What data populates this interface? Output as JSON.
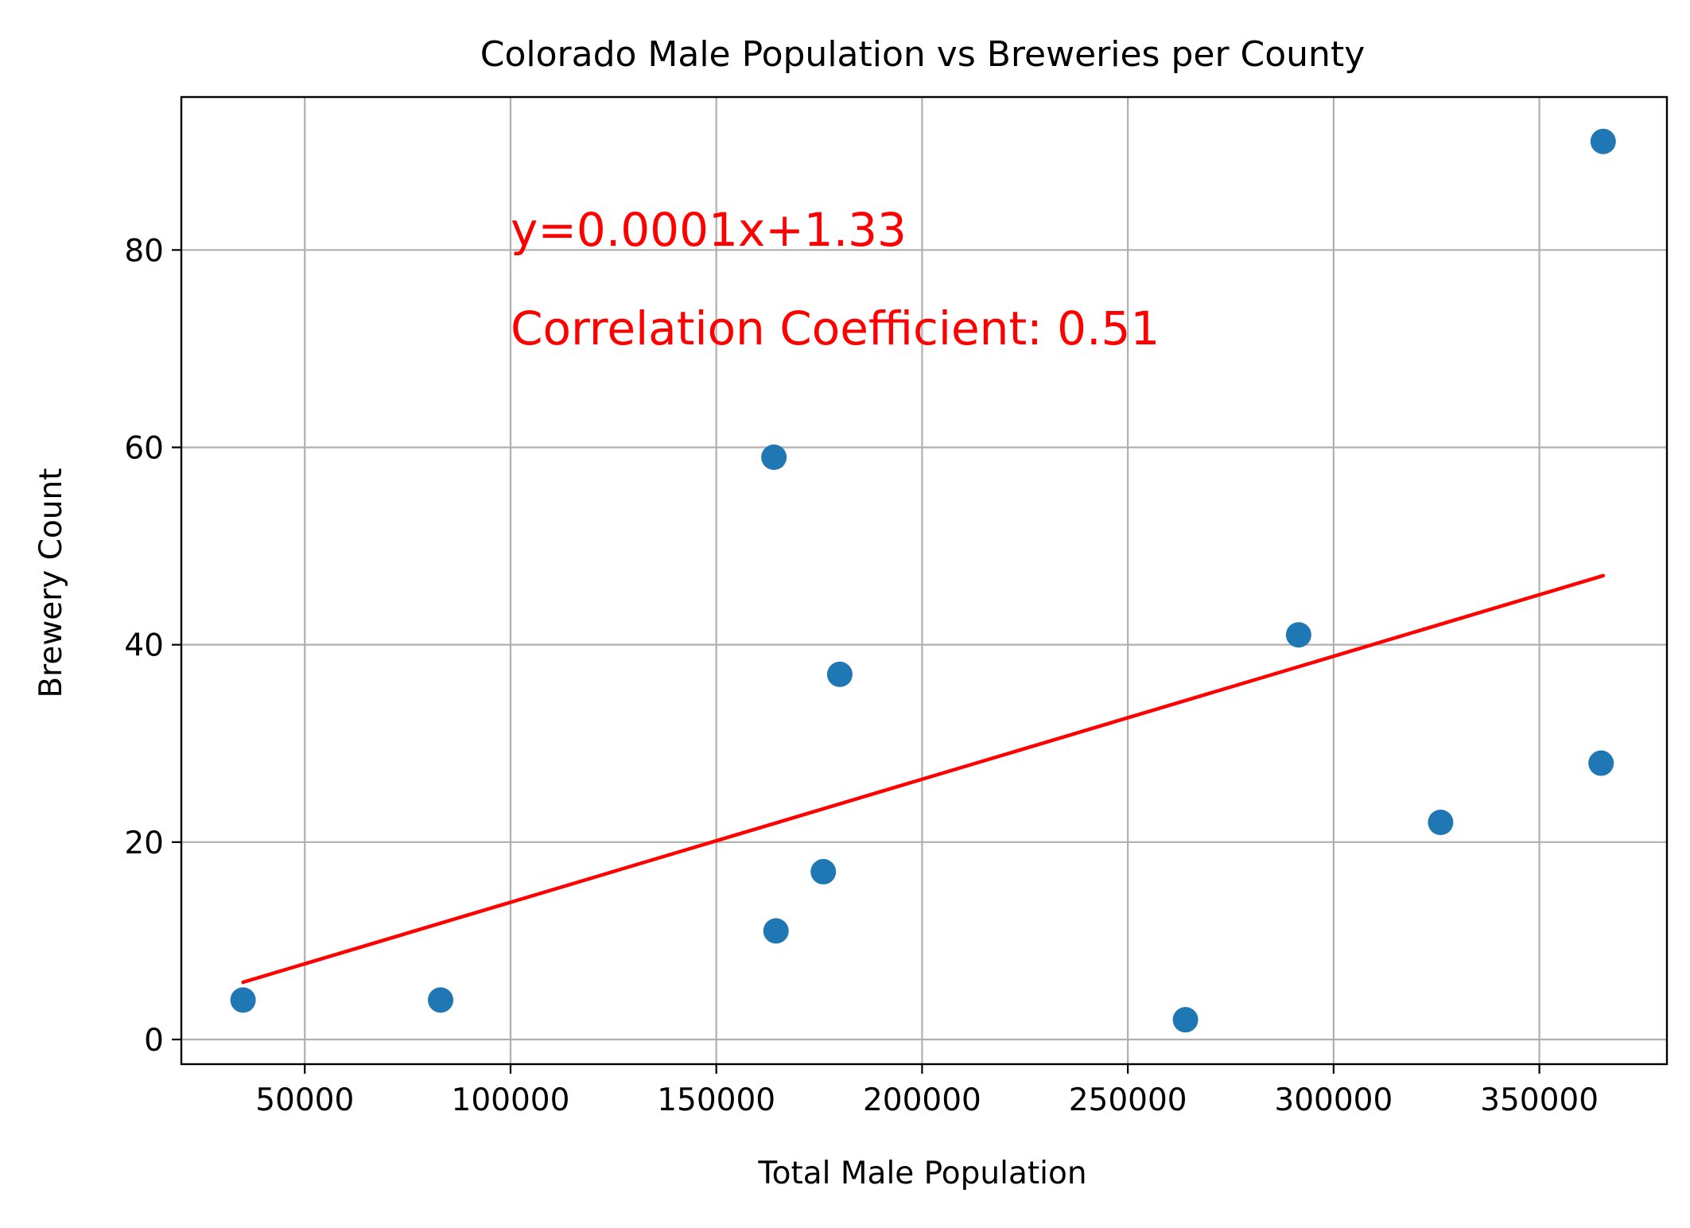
{
  "chart_data": {
    "type": "scatter",
    "title": "Colorado Male Population vs Breweries per County",
    "xlabel": "Total Male Population",
    "ylabel": "Brewery Count",
    "xlim": [
      20000,
      381000
    ],
    "ylim": [
      -2.5,
      95.5
    ],
    "x_ticks": [
      50000,
      100000,
      150000,
      200000,
      250000,
      300000,
      350000
    ],
    "y_ticks": [
      0,
      20,
      40,
      60,
      80
    ],
    "grid": true,
    "series": [
      {
        "points": [
          {
            "x": 35000,
            "y": 4
          },
          {
            "x": 83000,
            "y": 4
          },
          {
            "x": 164000,
            "y": 59
          },
          {
            "x": 164500,
            "y": 11
          },
          {
            "x": 176000,
            "y": 17
          },
          {
            "x": 180000,
            "y": 37
          },
          {
            "x": 264000,
            "y": 2
          },
          {
            "x": 291500,
            "y": 41
          },
          {
            "x": 326000,
            "y": 22
          },
          {
            "x": 365000,
            "y": 28
          },
          {
            "x": 365500,
            "y": 91
          }
        ],
        "color": "#1f77b4"
      }
    ],
    "regression": {
      "x_start": 35000,
      "x_end": 365500,
      "y_start": 5.8,
      "y_end": 47.0,
      "color": "#ff0000"
    },
    "annotations": [
      {
        "text": "y=0.0001x+1.33",
        "color": "#ff0000"
      },
      {
        "text": "Correlation Coefficient: 0.51",
        "color": "#ff0000"
      }
    ]
  }
}
